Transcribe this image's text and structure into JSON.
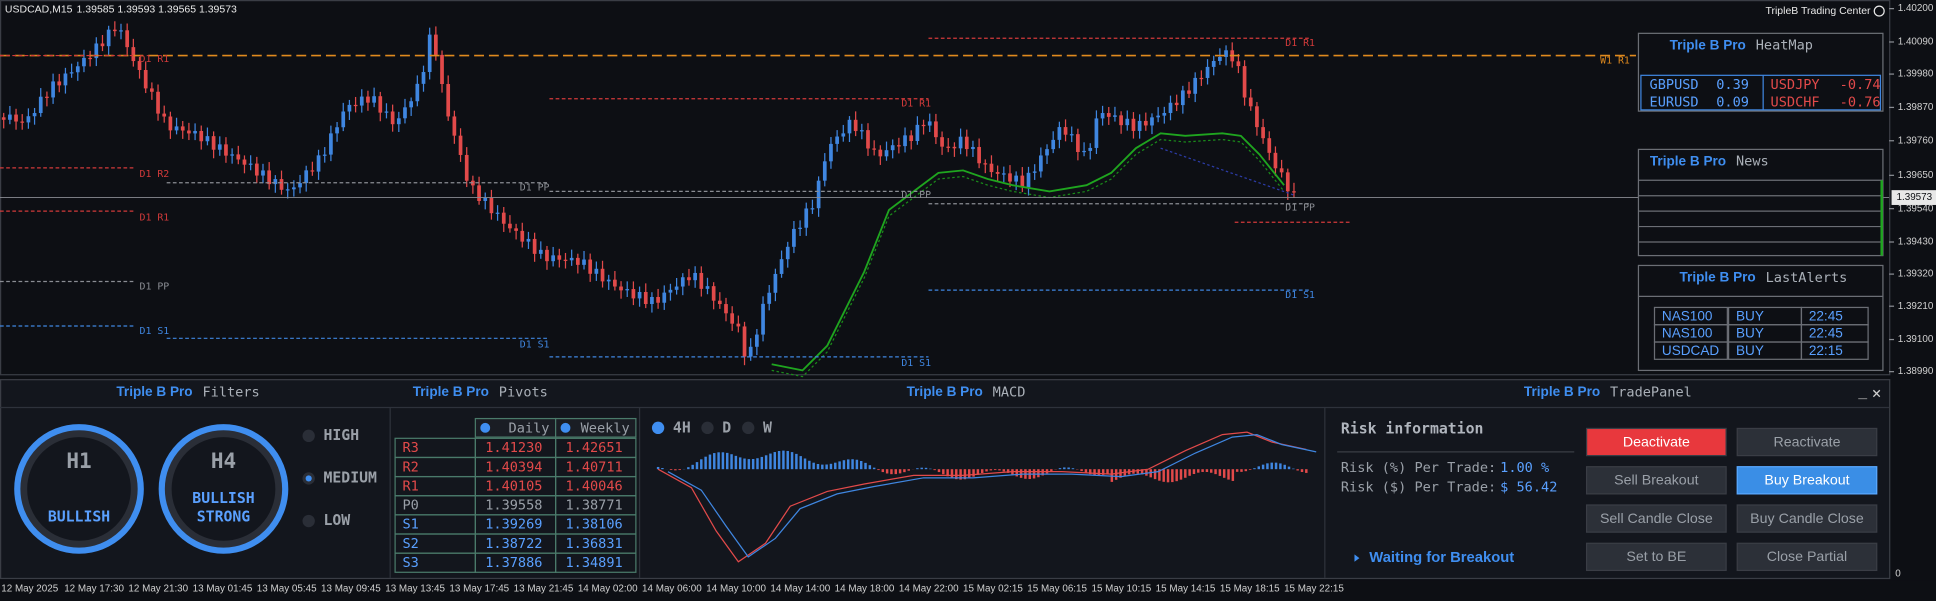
{
  "chart": {
    "symbol": "USDCAD,M15",
    "ohlc": "1.39585 1.39593 1.39565 1.39573",
    "brand": "TripleB Trading Center",
    "price_axis": [
      "1.40200",
      "1.40090",
      "1.39980",
      "1.39870",
      "1.39760",
      "1.39650",
      "1.39540",
      "1.39430",
      "1.39320",
      "1.39210",
      "1.39100",
      "1.38990"
    ],
    "current_price": "1.39573",
    "levels": [
      "W1 R1",
      "D1 R1",
      "D1 R2",
      "D1 R1",
      "D1 PP",
      "D1 S1",
      "D1 PP",
      "D1 S1",
      "D1 R1",
      "D1 PP",
      "D1 S1",
      "D1 R1",
      "D1 PP",
      "D1 S1"
    ],
    "time_axis": [
      "12 May 2025",
      "12 May 17:30",
      "12 May 21:30",
      "13 May 01:45",
      "13 May 05:45",
      "13 May 09:45",
      "13 May 13:45",
      "13 May 17:45",
      "13 May 21:45",
      "14 May 02:00",
      "14 May 06:00",
      "14 May 10:00",
      "14 May 14:00",
      "14 May 18:00",
      "14 May 22:00",
      "15 May 02:15",
      "15 May 06:15",
      "15 May 10:15",
      "15 May 14:15",
      "15 May 18:15",
      "15 May 22:15"
    ],
    "sub_axis": "0"
  },
  "heatmap": {
    "brand": "Triple B Pro",
    "title": "HeatMap",
    "rows": [
      [
        "GBPUSD",
        "0.39",
        "USDJPY",
        "-0.74"
      ],
      [
        "EURUSD",
        "0.09",
        "USDCHF",
        "-0.76"
      ]
    ]
  },
  "news": {
    "brand": "Triple B Pro",
    "title": "News"
  },
  "alerts": {
    "brand": "Triple B Pro",
    "title": "LastAlerts",
    "rows": [
      [
        "NAS100",
        "BUY",
        "22:45"
      ],
      [
        "NAS100",
        "BUY",
        "22:45"
      ],
      [
        "USDCAD",
        "BUY",
        "22:15"
      ]
    ]
  },
  "filters": {
    "brand": "Triple B Pro",
    "title": "Filters",
    "gauges": [
      {
        "tf": "H1",
        "label": "BULLISH"
      },
      {
        "tf": "H4",
        "label": "BULLISH STRONG"
      }
    ],
    "options": [
      "HIGH",
      "MEDIUM",
      "LOW"
    ]
  },
  "pivots": {
    "brand": "Triple B Pro",
    "title": "Pivots",
    "headers": [
      "Daily",
      "Weekly"
    ],
    "rows": [
      [
        "R3",
        "1.41230",
        "1.42651"
      ],
      [
        "R2",
        "1.40394",
        "1.40711"
      ],
      [
        "R1",
        "1.40105",
        "1.40046"
      ],
      [
        "P0",
        "1.39558",
        "1.38771"
      ],
      [
        "S1",
        "1.39269",
        "1.38106"
      ],
      [
        "S2",
        "1.38722",
        "1.36831"
      ],
      [
        "S3",
        "1.37886",
        "1.34891"
      ]
    ]
  },
  "macd": {
    "brand": "Triple B Pro",
    "title": "MACD",
    "timeframes": [
      "4H",
      "D",
      "W"
    ]
  },
  "trade_panel": {
    "brand": "Triple B Pro",
    "title": "TradePanel",
    "minimize": "_",
    "close": "×",
    "risk_title": "Risk information",
    "risk_rows": [
      [
        "Risk (%) Per Trade:",
        "1.00 %"
      ],
      [
        "Risk ($) Per Trade:",
        "$ 56.42"
      ]
    ],
    "status": "Waiting for Breakout",
    "buttons": [
      "Deactivate",
      "Reactivate",
      "Sell Breakout",
      "Buy Breakout",
      "Sell Candle Close",
      "Buy Candle Close",
      "Set to BE",
      "Close Partial"
    ]
  }
}
